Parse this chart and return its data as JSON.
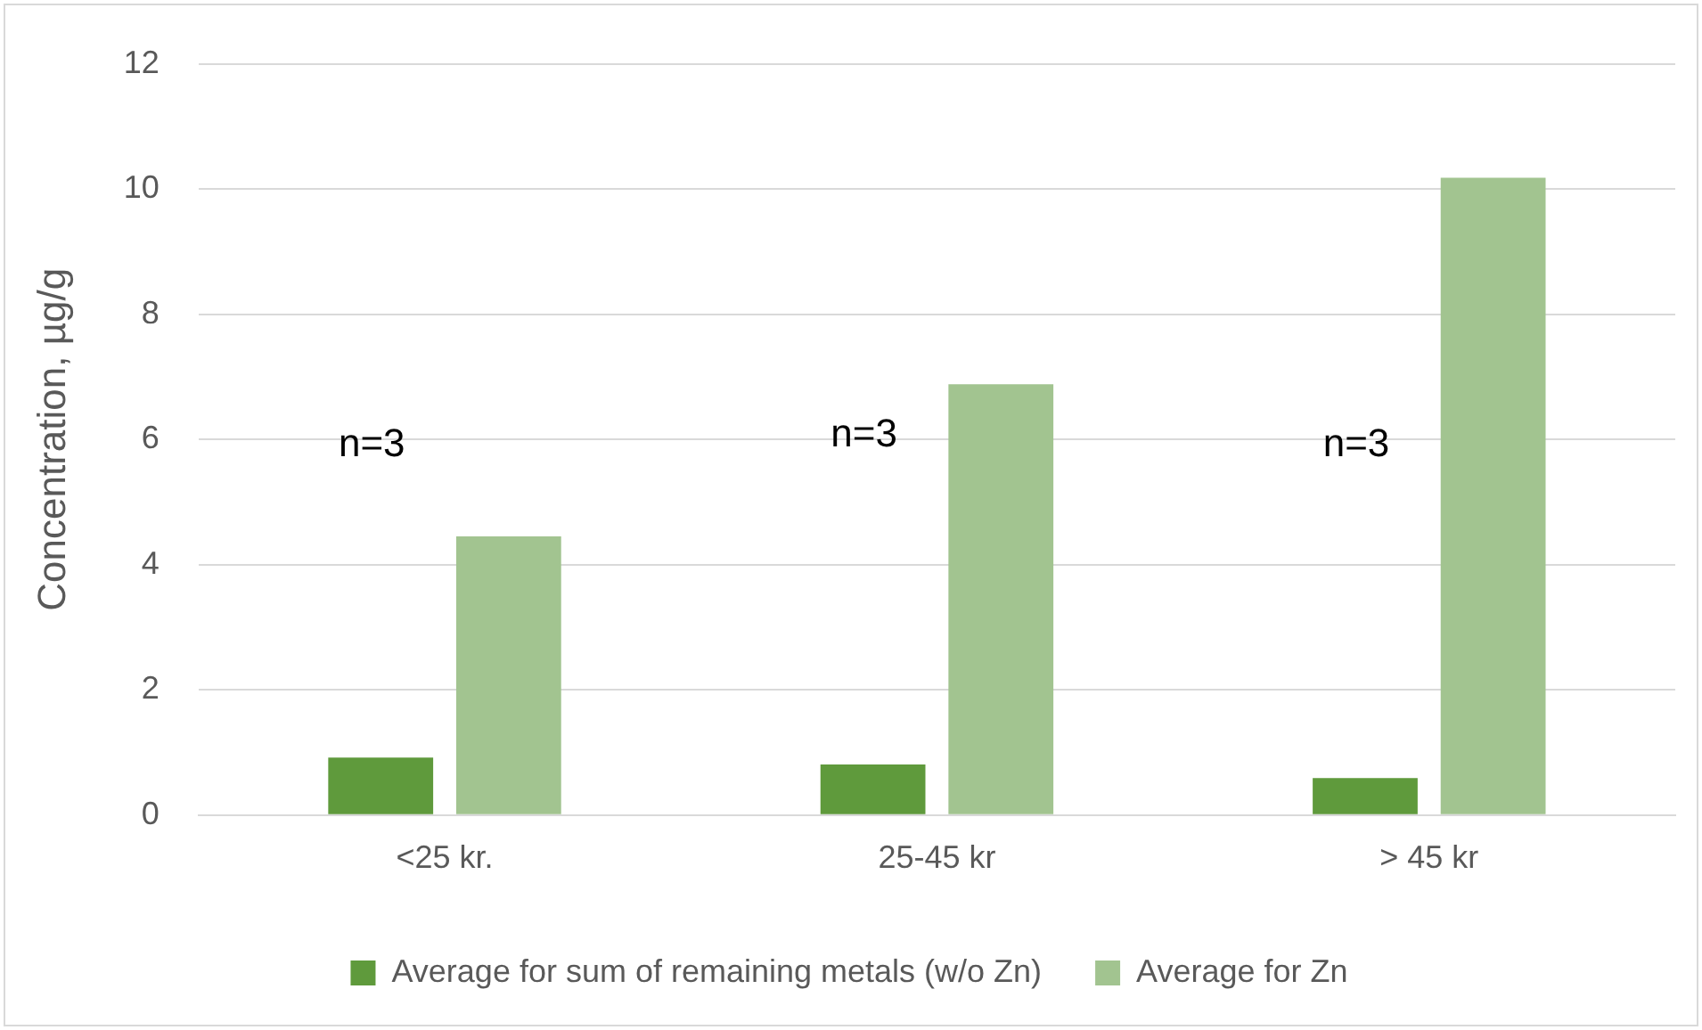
{
  "chart_data": {
    "type": "bar",
    "ylabel": "Concentration, µg/g",
    "categories": [
      "<25 kr.",
      "25-45 kr",
      "> 45 kr"
    ],
    "series": [
      {
        "name": "Average for sum of remaining metals (w/o Zn)",
        "color": "#5f9a3c",
        "values": [
          0.92,
          0.81,
          0.59
        ]
      },
      {
        "name": "Average for Zn",
        "color": "#a2c490",
        "values": [
          4.45,
          6.88,
          10.18
        ]
      }
    ],
    "ylim": [
      0,
      12
    ],
    "yticks": [
      0,
      2,
      4,
      6,
      8,
      10,
      12
    ],
    "grid": "y",
    "legend": "bottom",
    "annotations": [
      "n=3",
      "n=3",
      "n=3"
    ]
  }
}
